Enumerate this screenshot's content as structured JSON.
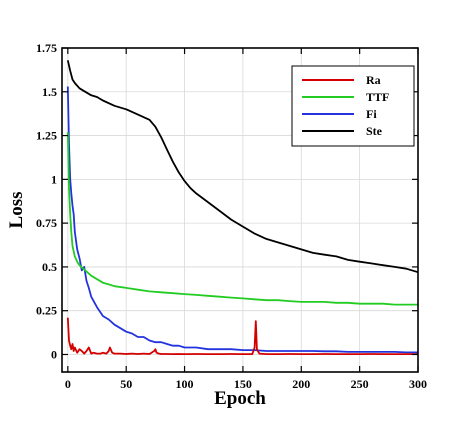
{
  "chart_data": {
    "type": "line",
    "title": "",
    "xlabel": "Epoch",
    "ylabel": "Loss",
    "xlim": [
      -5,
      300
    ],
    "ylim": [
      -0.1,
      1.75
    ],
    "grid": true,
    "legend_position": "top-right",
    "x_ticks": [
      0,
      50,
      100,
      150,
      200,
      250,
      300
    ],
    "x_tick_labels": [
      "0",
      "50",
      "100",
      "150",
      "200",
      "250",
      "300"
    ],
    "y_ticks": [
      0,
      0.25,
      0.5,
      0.75,
      1,
      1.25,
      1.5,
      1.75
    ],
    "y_tick_labels": [
      "0",
      "0.25",
      "0.5",
      "0.75",
      "1",
      "1.25",
      "1.5",
      "1.75"
    ],
    "series": [
      {
        "name": "Ra",
        "color": "#d40000",
        "x": [
          0,
          1,
          2,
          3,
          4,
          5,
          6,
          8,
          10,
          12,
          14,
          16,
          18,
          20,
          22,
          25,
          28,
          30,
          33,
          35,
          36,
          38,
          40,
          45,
          50,
          55,
          60,
          65,
          70,
          74,
          75,
          76,
          78,
          80,
          85,
          90,
          95,
          100,
          110,
          120,
          130,
          140,
          150,
          158,
          160,
          161,
          162,
          164,
          170,
          180,
          190,
          200,
          210,
          220,
          230,
          240,
          250,
          260,
          270,
          280,
          290,
          300
        ],
        "values": [
          0.21,
          0.08,
          0.05,
          0.03,
          0.06,
          0.02,
          0.04,
          0.01,
          0.03,
          0.02,
          0.005,
          0.02,
          0.04,
          0.005,
          0.01,
          0.005,
          0.005,
          0.01,
          0.005,
          0.02,
          0.04,
          0.01,
          0.005,
          0.005,
          0.003,
          0.005,
          0.003,
          0.005,
          0.003,
          0.02,
          0.03,
          0.01,
          0.005,
          0.003,
          0.003,
          0.002,
          0.003,
          0.002,
          0.003,
          0.002,
          0.002,
          0.003,
          0.002,
          0.002,
          0.04,
          0.19,
          0.03,
          0.005,
          0.002,
          0.002,
          0.003,
          0.002,
          0.002,
          0.003,
          0.002,
          0.002,
          0.002,
          0.003,
          0.002,
          0.002,
          0.002,
          0.002
        ]
      },
      {
        "name": "TTF",
        "color": "#22cc22",
        "x": [
          0,
          1,
          2,
          3,
          4,
          6,
          8,
          10,
          15,
          20,
          25,
          30,
          35,
          40,
          50,
          60,
          70,
          80,
          90,
          100,
          110,
          120,
          130,
          140,
          150,
          160,
          170,
          180,
          190,
          200,
          210,
          220,
          230,
          240,
          250,
          260,
          270,
          280,
          290,
          300
        ],
        "values": [
          1.27,
          0.95,
          0.8,
          0.7,
          0.62,
          0.56,
          0.53,
          0.51,
          0.48,
          0.45,
          0.43,
          0.41,
          0.4,
          0.39,
          0.38,
          0.37,
          0.36,
          0.355,
          0.35,
          0.345,
          0.34,
          0.335,
          0.33,
          0.325,
          0.32,
          0.315,
          0.31,
          0.31,
          0.305,
          0.3,
          0.3,
          0.3,
          0.295,
          0.295,
          0.29,
          0.29,
          0.29,
          0.285,
          0.285,
          0.285
        ]
      },
      {
        "name": "Fi",
        "color": "#2233dd",
        "x": [
          0,
          1,
          2,
          3,
          4,
          5,
          6,
          8,
          10,
          12,
          14,
          16,
          18,
          20,
          25,
          30,
          35,
          40,
          45,
          50,
          55,
          60,
          65,
          70,
          75,
          80,
          85,
          90,
          95,
          100,
          110,
          120,
          130,
          140,
          150,
          160,
          170,
          180,
          190,
          200,
          210,
          220,
          230,
          240,
          250,
          260,
          270,
          280,
          290,
          300
        ],
        "values": [
          1.53,
          1.2,
          1.0,
          0.92,
          0.85,
          0.8,
          0.7,
          0.6,
          0.55,
          0.48,
          0.5,
          0.42,
          0.38,
          0.33,
          0.27,
          0.22,
          0.2,
          0.17,
          0.15,
          0.13,
          0.12,
          0.1,
          0.1,
          0.08,
          0.07,
          0.07,
          0.06,
          0.05,
          0.05,
          0.04,
          0.04,
          0.03,
          0.03,
          0.03,
          0.025,
          0.025,
          0.02,
          0.02,
          0.02,
          0.02,
          0.02,
          0.018,
          0.018,
          0.015,
          0.015,
          0.015,
          0.015,
          0.015,
          0.012,
          0.012
        ]
      },
      {
        "name": "Ste",
        "color": "#000000",
        "x": [
          0,
          2,
          4,
          6,
          10,
          15,
          20,
          25,
          30,
          40,
          50,
          60,
          70,
          75,
          80,
          85,
          90,
          95,
          100,
          105,
          110,
          120,
          130,
          140,
          150,
          160,
          170,
          180,
          190,
          200,
          210,
          220,
          230,
          240,
          250,
          260,
          270,
          280,
          290,
          300
        ],
        "values": [
          1.68,
          1.62,
          1.57,
          1.55,
          1.52,
          1.5,
          1.48,
          1.47,
          1.45,
          1.42,
          1.4,
          1.37,
          1.34,
          1.3,
          1.24,
          1.17,
          1.1,
          1.04,
          0.99,
          0.95,
          0.92,
          0.87,
          0.82,
          0.77,
          0.73,
          0.69,
          0.66,
          0.64,
          0.62,
          0.6,
          0.58,
          0.57,
          0.56,
          0.54,
          0.53,
          0.52,
          0.51,
          0.5,
          0.49,
          0.47
        ]
      }
    ]
  }
}
